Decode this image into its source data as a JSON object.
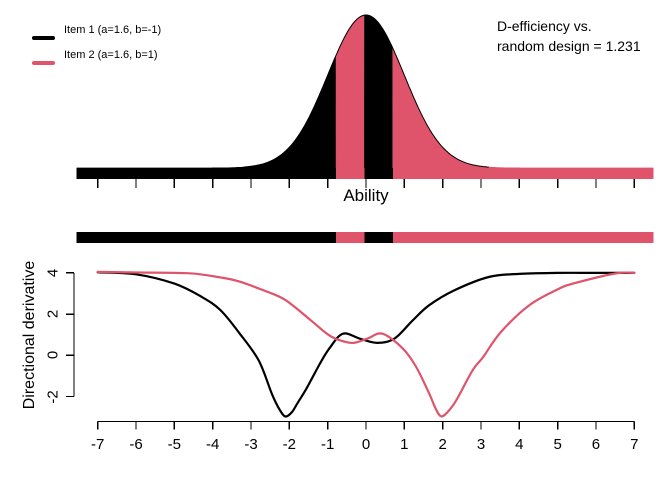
{
  "figure": {
    "background": "#ffffff",
    "legend": {
      "items": [
        {
          "label": "Item 1 (a=1.6, b=-1)",
          "color": "#000000"
        },
        {
          "label": "Item 2 (a=1.6, b=1)",
          "color": "#DF536B"
        }
      ]
    },
    "annotation": {
      "line1": "D-efficiency vs.",
      "line2": "random design = 1.231"
    }
  },
  "colors": {
    "item1": "#000000",
    "item2": "#DF536B",
    "axis": "#000000"
  },
  "chart_data": [
    {
      "type": "area",
      "id": "ability-density",
      "title": "",
      "xlabel": "Ability",
      "ylabel": "",
      "x_range": [
        -7.55,
        7.5
      ],
      "x_ticks": [
        -7,
        -6,
        -5,
        -4,
        -3,
        -2,
        -1,
        0,
        1,
        2,
        3,
        4,
        5,
        6,
        7
      ],
      "x_tick_labels_shown": false,
      "curve": "standard normal density, mean 0, sd 1, peak at x=0",
      "fill_segments": [
        {
          "from": -7.55,
          "to": -0.78,
          "item": "Item 1",
          "color": "#000000"
        },
        {
          "from": -0.78,
          "to": -0.04,
          "item": "Item 2",
          "color": "#DF536B"
        },
        {
          "from": -0.04,
          "to": 0.7,
          "item": "Item 1",
          "color": "#000000"
        },
        {
          "from": 0.7,
          "to": 7.5,
          "item": "Item 2",
          "color": "#DF536B"
        }
      ]
    },
    {
      "type": "bar",
      "id": "design-strip",
      "title": "item assignment strip",
      "segments": [
        {
          "from": -7.55,
          "to": -0.78,
          "item": "Item 1",
          "color": "#000000"
        },
        {
          "from": -0.78,
          "to": -0.04,
          "item": "Item 2",
          "color": "#DF536B"
        },
        {
          "from": -0.04,
          "to": 0.7,
          "item": "Item 1",
          "color": "#000000"
        },
        {
          "from": 0.7,
          "to": 7.5,
          "item": "Item 2",
          "color": "#DF536B"
        }
      ]
    },
    {
      "type": "line",
      "id": "directional-derivative",
      "title": "",
      "xlabel": "",
      "ylabel": "Directional derivative",
      "x_range": [
        -7,
        7
      ],
      "y_range": [
        -3.2,
        4.15
      ],
      "x_ticks": [
        -7,
        -6,
        -5,
        -4,
        -3,
        -2,
        -1,
        0,
        1,
        2,
        3,
        4,
        5,
        6,
        7
      ],
      "y_ticks": [
        -2,
        0,
        2,
        4
      ],
      "grid": false,
      "legend_position": "top-left-of-figure",
      "series": [
        {
          "name": "Item 1",
          "color": "#000000",
          "points": [
            [
              -7,
              4.03
            ],
            [
              -6,
              3.93
            ],
            [
              -5,
              3.48
            ],
            [
              -4.3,
              2.85
            ],
            [
              -3.8,
              2.2
            ],
            [
              -3.3,
              1.07
            ],
            [
              -2.8,
              -0.25
            ],
            [
              -2.45,
              -1.9
            ],
            [
              -2.25,
              -2.65
            ],
            [
              -2.1,
              -2.97
            ],
            [
              -1.93,
              -2.75
            ],
            [
              -1.78,
              -2.3
            ],
            [
              -1.55,
              -1.6
            ],
            [
              -1.2,
              -0.4
            ],
            [
              -0.95,
              0.35
            ],
            [
              -0.6,
              1.05
            ],
            [
              -0.15,
              0.8
            ],
            [
              0.3,
              0.6
            ],
            [
              0.75,
              0.82
            ],
            [
              1.22,
              1.7
            ],
            [
              1.65,
              2.43
            ],
            [
              2.3,
              3.15
            ],
            [
              3.2,
              3.8
            ],
            [
              4,
              3.95
            ],
            [
              5,
              4.0
            ],
            [
              6,
              4.0
            ],
            [
              7,
              4.0
            ]
          ]
        },
        {
          "name": "Item 2",
          "color": "#DF536B",
          "points": [
            [
              -7,
              4.05
            ],
            [
              -6,
              4.02
            ],
            [
              -4.6,
              3.98
            ],
            [
              -3.8,
              3.78
            ],
            [
              -3.3,
              3.58
            ],
            [
              -2.6,
              3.1
            ],
            [
              -2.1,
              2.68
            ],
            [
              -1.44,
              1.7
            ],
            [
              -1.0,
              1.02
            ],
            [
              -0.7,
              0.74
            ],
            [
              -0.33,
              0.6
            ],
            [
              0.05,
              0.82
            ],
            [
              0.43,
              1.05
            ],
            [
              0.96,
              0.33
            ],
            [
              1.31,
              -0.57
            ],
            [
              1.65,
              -1.86
            ],
            [
              1.82,
              -2.6
            ],
            [
              1.96,
              -2.96
            ],
            [
              2.13,
              -2.75
            ],
            [
              2.35,
              -2.2
            ],
            [
              2.78,
              -0.73
            ],
            [
              3.05,
              -0.1
            ],
            [
              3.52,
              1.13
            ],
            [
              4.26,
              2.43
            ],
            [
              5,
              3.2
            ],
            [
              5.4,
              3.48
            ],
            [
              6.5,
              3.97
            ],
            [
              7,
              4.0
            ]
          ]
        }
      ]
    }
  ]
}
